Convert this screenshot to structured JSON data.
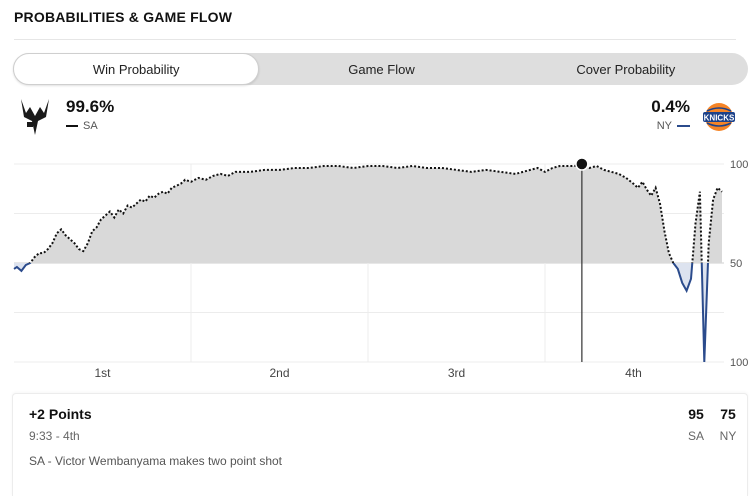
{
  "section": {
    "title": "PROBABILITIES & GAME FLOW"
  },
  "tabs": [
    {
      "label": "Win Probability",
      "active": true
    },
    {
      "label": "Game Flow",
      "active": false
    },
    {
      "label": "Cover Probability",
      "active": false
    }
  ],
  "teams": {
    "home": {
      "abbr": "SA",
      "win_probability": "99.6%",
      "logo_icon": "spurs-logo-icon",
      "line_style": "dotted",
      "color": "#111111"
    },
    "away": {
      "abbr": "NY",
      "win_probability": "0.4%",
      "logo_icon": "knicks-logo-icon",
      "line_style": "solid",
      "color": "#2b4b8c"
    }
  },
  "chart_data": {
    "type": "line",
    "ylabels": [
      "100",
      "50",
      "100"
    ],
    "quarters": [
      "1st",
      "2nd",
      "3rd",
      "4th"
    ],
    "fill_color": "#d9d9d9",
    "grid": true,
    "x_domain": [
      0,
      48
    ],
    "series": [
      {
        "x": [
          0,
          0.2,
          0.5,
          0.8,
          1.1,
          1.4,
          1.7,
          2.0,
          2.3,
          2.6,
          2.9,
          3.2,
          3.5,
          3.8,
          4.1,
          4.4,
          4.7,
          5.0,
          5.3,
          5.6,
          5.9,
          6.2,
          6.5,
          6.8,
          7.1,
          7.4,
          7.7,
          8.0,
          8.3,
          8.6,
          8.9,
          9.2,
          9.5,
          9.8,
          10.1,
          10.4,
          10.7,
          11.0,
          11.3,
          11.6,
          12.0,
          12.5,
          13.0,
          13.5,
          14.0,
          14.5,
          15.0,
          16,
          17,
          18,
          19,
          20,
          21,
          22,
          23,
          24,
          25,
          26,
          27,
          28,
          29,
          30,
          31,
          32,
          33,
          34,
          35,
          35.5,
          36,
          36.5,
          37,
          37.5,
          38,
          38.5,
          39,
          39.5,
          40,
          40.5,
          41,
          41.5,
          42,
          42.3,
          42.6,
          42.9,
          43.2,
          43.5,
          43.8,
          44.1,
          44.4,
          44.7,
          45.0,
          45.3,
          45.6,
          45.9,
          46.2,
          46.5,
          46.8,
          47.1,
          47.4,
          47.7,
          48.0
        ],
        "values": [
          47,
          48,
          46,
          49,
          50,
          53,
          55,
          55,
          57,
          60,
          65,
          67,
          64,
          62,
          60,
          57,
          56,
          60,
          66,
          68,
          72,
          74,
          76,
          73,
          77,
          75,
          79,
          78,
          80,
          82,
          81,
          84,
          83,
          85,
          86,
          85,
          88,
          89,
          90,
          92,
          91,
          93,
          92,
          94,
          95,
          94,
          96,
          96,
          97,
          97,
          98,
          98,
          99,
          99,
          98,
          99,
          99,
          98,
          99,
          98,
          98,
          97,
          96,
          97,
          96,
          95,
          97,
          98,
          96,
          98,
          99,
          99,
          99,
          100,
          98,
          99,
          97,
          96,
          95,
          93,
          90,
          88,
          91,
          87,
          84,
          88,
          80,
          66,
          55,
          50,
          47,
          40,
          36,
          42,
          70,
          86,
          0,
          60,
          82,
          88,
          86
        ]
      }
    ]
  },
  "play": {
    "title": "+2 Points",
    "time": "9:33 - 4th",
    "description": "SA - Victor Wembanyama makes two point shot",
    "home_score": "95",
    "away_score": "75",
    "home_abbr": "SA",
    "away_abbr": "NY"
  }
}
